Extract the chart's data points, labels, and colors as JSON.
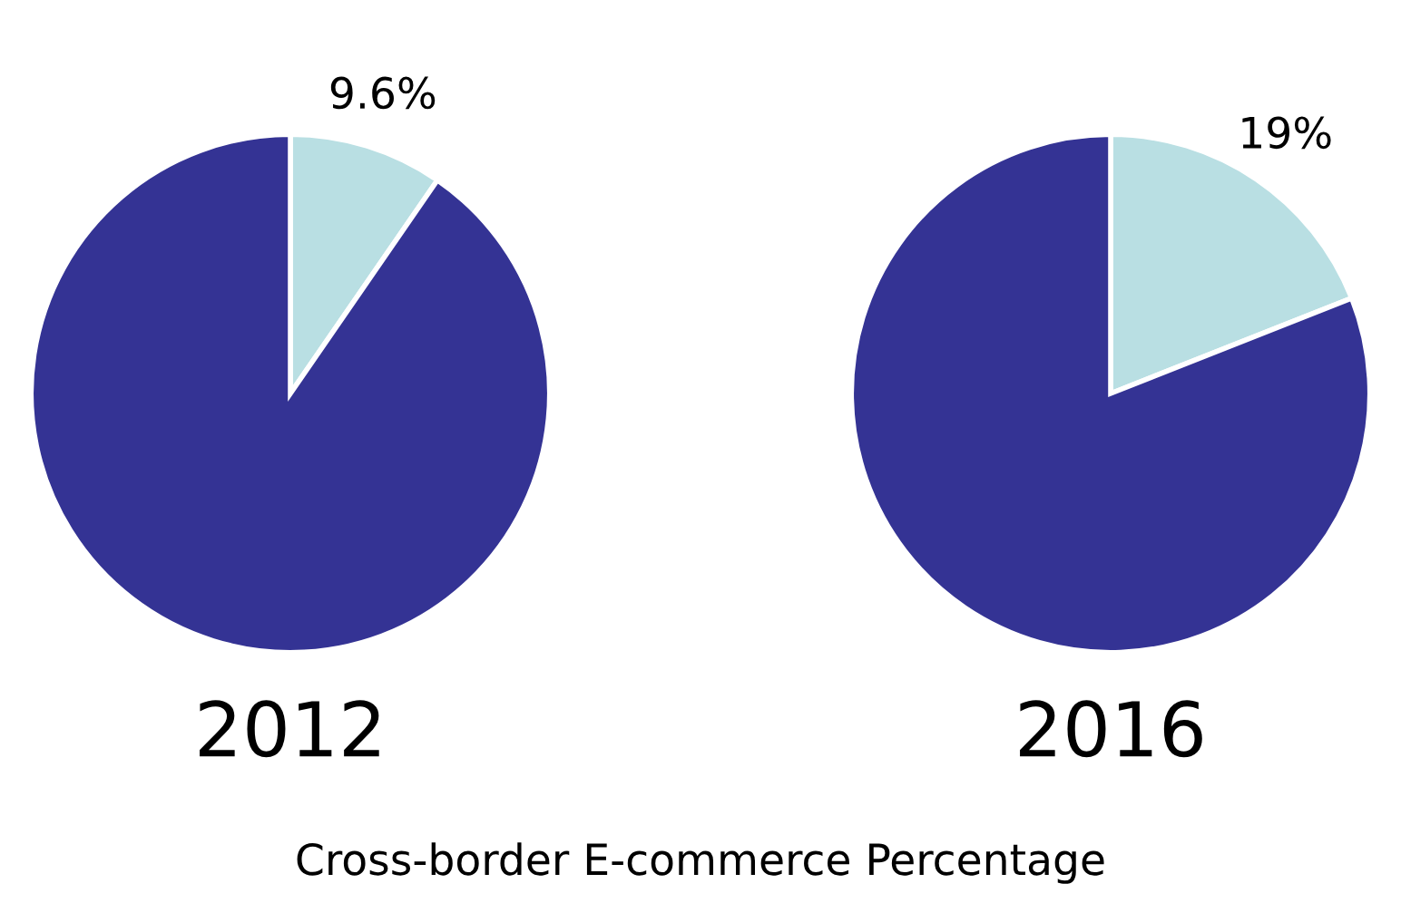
{
  "chart_data": [
    {
      "type": "pie",
      "title": "2012",
      "categories": [
        null,
        null
      ],
      "values": [
        9.6,
        90.4
      ],
      "colors": [
        "#b9dfe3",
        "#343394"
      ],
      "value_labels": [
        "9.6%",
        null
      ],
      "annotations": [
        "Cross-border E-commerce Percentage"
      ]
    },
    {
      "type": "pie",
      "title": "2016",
      "categories": [
        null,
        null
      ],
      "values": [
        19,
        81
      ],
      "colors": [
        "#b9dfe3",
        "#343394"
      ],
      "value_labels": [
        "19%",
        null
      ]
    }
  ]
}
